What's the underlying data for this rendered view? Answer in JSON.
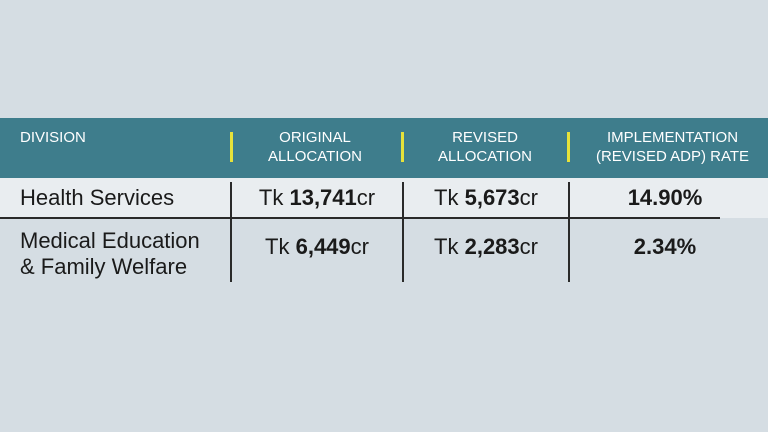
{
  "table": {
    "header": [
      "DIVISION",
      "ORIGINAL ALLOCATION",
      "REVISED ALLOCATION",
      "IMPLEMENTATION (REVISED ADP) RATE"
    ],
    "rows": [
      {
        "division": "Health Services",
        "original": {
          "prefix": "Tk",
          "number": "13,741",
          "suffix": "cr"
        },
        "revised": {
          "prefix": "Tk",
          "number": "5,673",
          "suffix": "cr"
        },
        "rate": "14.90%"
      },
      {
        "division": "Medical Education & Family Welfare",
        "original": {
          "prefix": "Tk",
          "number": "6,449",
          "suffix": "cr"
        },
        "revised": {
          "prefix": "Tk",
          "number": "2,283",
          "suffix": "cr"
        },
        "rate": "2.34%"
      }
    ]
  }
}
